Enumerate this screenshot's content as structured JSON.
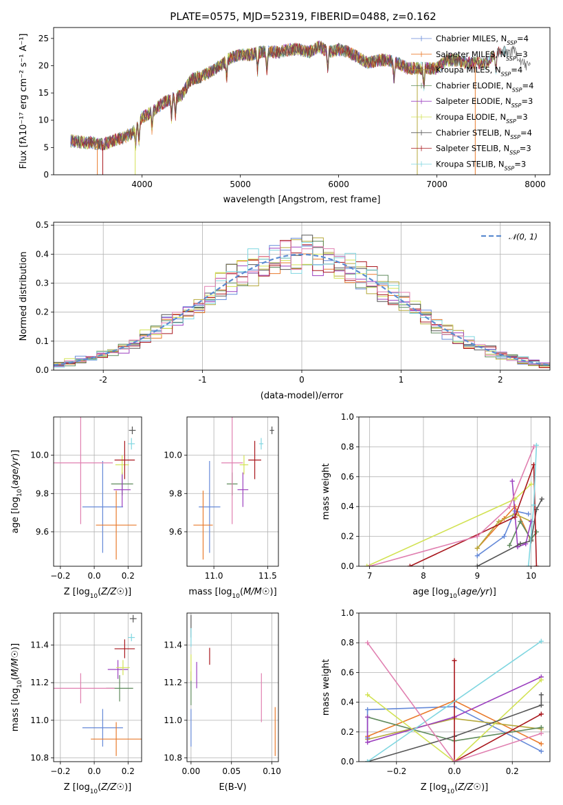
{
  "figure_title": "PLATE=0575, MJD=52319, FIBERID=0488, z=0.162",
  "colors": [
    "#6489d8",
    "#e97a2b",
    "#b5a83a",
    "#5f8a5c",
    "#9b3fbf",
    "#d2e253",
    "#555555",
    "#a8161c",
    "#7fd6e0",
    "#e07fb0"
  ],
  "chart_data": [
    {
      "id": "spectrum",
      "type": "line",
      "title": "PLATE=0575, MJD=52319, FIBERID=0488, z=0.162",
      "xlabel": "wavelength [Angstrom, rest frame]",
      "ylabel": "Flux [fλ10⁻¹⁷ erg cm⁻² s⁻¹ A⁻¹]",
      "xlim": [
        3100,
        8150
      ],
      "ylim": [
        0,
        27
      ],
      "xticks": [
        4000,
        5000,
        6000,
        7000,
        8000
      ],
      "yticks": [
        0,
        5,
        10,
        15,
        20,
        25
      ],
      "grid": false,
      "legend_position": "top-right",
      "envelope": {
        "x": [
          3300,
          3400,
          3500,
          3600,
          3700,
          3800,
          3900,
          4000,
          4100,
          4200,
          4300,
          4400,
          4500,
          4600,
          4700,
          4800,
          4900,
          5000,
          5100,
          5200,
          5300,
          5400,
          5500,
          5600,
          5700,
          5800,
          5900,
          6000,
          6100,
          6200,
          6300,
          6400,
          6500,
          6600,
          6700,
          6800,
          6900,
          7000,
          7100,
          7200,
          7300,
          7400,
          7500,
          7600,
          7700,
          7800,
          7900
        ],
        "y": [
          6.2,
          5.9,
          5.9,
          5.5,
          6.2,
          6.8,
          7.6,
          10.5,
          11.5,
          13.0,
          14.0,
          14.5,
          17.5,
          18.0,
          19.0,
          20.0,
          21.5,
          22.0,
          22.0,
          22.5,
          22.5,
          22.5,
          23.0,
          23.0,
          22.5,
          23.5,
          22.5,
          23.0,
          22.5,
          21.5,
          20.5,
          21.0,
          21.0,
          20.5,
          19.5,
          19.5,
          19.5,
          19.5,
          21.0,
          21.0,
          20.5,
          20.5,
          20.5,
          22.5,
          22.5,
          22.5,
          20.0
        ]
      },
      "series": [
        {
          "name": "Chabrier MILES, N_SSP=4",
          "color": "#6489d8"
        },
        {
          "name": "Salpeter MILES, N_SSP=3",
          "color": "#e97a2b"
        },
        {
          "name": "Kroupa MILES, N_SSP=4",
          "color": "#b5a83a"
        },
        {
          "name": "Chabrier ELODIE, N_SSP=4",
          "color": "#5f8a5c"
        },
        {
          "name": "Salpeter ELODIE, N_SSP=3",
          "color": "#9b3fbf"
        },
        {
          "name": "Kroupa ELODIE, N_SSP=3",
          "color": "#d2e253"
        },
        {
          "name": "Chabrier STELIB, N_SSP=4",
          "color": "#555555"
        },
        {
          "name": "Salpeter STELIB, N_SSP=3",
          "color": "#a8161c"
        },
        {
          "name": "Kroupa STELIB, N_SSP=3",
          "color": "#7fd6e0"
        }
      ]
    },
    {
      "id": "residuals",
      "type": "histogram",
      "xlabel": "(data-model)/error",
      "ylabel": "Normed distribution",
      "xlim": [
        -2.5,
        2.5
      ],
      "ylim": [
        0,
        0.51
      ],
      "xticks": [
        -2,
        -1,
        0,
        1,
        2
      ],
      "yticks": [
        0.0,
        0.1,
        0.2,
        0.3,
        0.4,
        0.5
      ],
      "grid": true,
      "bins_edges": [
        -2.5,
        2.5
      ],
      "n_bins": 46,
      "reference_label": "𝒩(0, 1)",
      "reference_color": "#5b8bd0",
      "legend_position": "top-right"
    },
    {
      "id": "age_vs_Z",
      "type": "errorbar",
      "xlabel": "Z [log10(Z/Z☉)]",
      "ylabel": "age  [log10(age/yr)]",
      "xlim": [
        -0.24,
        0.28
      ],
      "ylim": [
        9.42,
        10.2
      ],
      "xticks": [
        -0.2,
        0.0,
        0.2
      ],
      "yticks": [
        9.6,
        9.8,
        10.0
      ],
      "grid": true,
      "points": [
        {
          "x": 0.05,
          "y": 9.73,
          "xerr": 0.12,
          "yerr": 0.24,
          "color": "#6489d8"
        },
        {
          "x": 0.13,
          "y": 9.635,
          "xerr": 0.12,
          "yerr": 0.18,
          "color": "#e97a2b"
        },
        {
          "x": 0.165,
          "y": 9.85,
          "xerr": 0.065,
          "yerr": 0.06,
          "color": "#5f8a5c"
        },
        {
          "x": 0.165,
          "y": 9.82,
          "xerr": 0.05,
          "yerr": 0.09,
          "color": "#9b3fbf"
        },
        {
          "x": 0.165,
          "y": 9.95,
          "xerr": 0.04,
          "yerr": 0.05,
          "color": "#d2e253"
        },
        {
          "x": 0.225,
          "y": 10.13,
          "xerr": 0.02,
          "yerr": 0.02,
          "color": "#555555"
        },
        {
          "x": 0.18,
          "y": 9.975,
          "xerr": 0.06,
          "yerr": 0.1,
          "color": "#a8161c"
        },
        {
          "x": 0.22,
          "y": 10.06,
          "xerr": 0.02,
          "yerr": 0.03,
          "color": "#7fd6e0"
        },
        {
          "x": -0.08,
          "y": 9.96,
          "xerr": 0.19,
          "yerr": 0.32,
          "color": "#e07fb0"
        }
      ]
    },
    {
      "id": "age_vs_mass",
      "type": "errorbar",
      "xlabel": "mass [log10(M/M☉)]",
      "ylabel": "",
      "xlim": [
        10.75,
        11.6
      ],
      "ylim": [
        9.42,
        10.2
      ],
      "xticks": [
        11.0,
        11.5
      ],
      "yticks": [
        9.6,
        9.8,
        10.0
      ],
      "grid": true,
      "points": [
        {
          "x": 10.96,
          "y": 9.73,
          "xerr": 0.1,
          "yerr": 0.24,
          "color": "#6489d8"
        },
        {
          "x": 10.9,
          "y": 9.635,
          "xerr": 0.09,
          "yerr": 0.18,
          "color": "#e97a2b"
        },
        {
          "x": 11.17,
          "y": 9.85,
          "xerr": 0.05,
          "yerr": 0.06,
          "color": "#5f8a5c"
        },
        {
          "x": 11.27,
          "y": 9.82,
          "xerr": 0.05,
          "yerr": 0.09,
          "color": "#9b3fbf"
        },
        {
          "x": 11.28,
          "y": 9.95,
          "xerr": 0.04,
          "yerr": 0.05,
          "color": "#d2e253"
        },
        {
          "x": 11.54,
          "y": 10.13,
          "xerr": 0.02,
          "yerr": 0.02,
          "color": "#555555"
        },
        {
          "x": 11.38,
          "y": 9.975,
          "xerr": 0.06,
          "yerr": 0.1,
          "color": "#a8161c"
        },
        {
          "x": 11.44,
          "y": 10.06,
          "xerr": 0.02,
          "yerr": 0.03,
          "color": "#7fd6e0"
        },
        {
          "x": 11.17,
          "y": 9.96,
          "xerr": 0.1,
          "yerr": 0.32,
          "color": "#e07fb0"
        }
      ]
    },
    {
      "id": "weight_vs_age",
      "type": "line",
      "xlabel": "age  [log10(age/yr)]",
      "ylabel": "mass weight",
      "xlim": [
        6.8,
        10.35
      ],
      "ylim": [
        0.0,
        1.0
      ],
      "xticks": [
        7,
        8,
        9,
        10
      ],
      "yticks": [
        0.0,
        0.2,
        0.4,
        0.6,
        0.8,
        1.0
      ],
      "grid": true,
      "series": [
        {
          "color": "#6489d8",
          "x": [
            9.0,
            9.5,
            9.7,
            9.95
          ],
          "y": [
            0.07,
            0.2,
            0.37,
            0.35
          ]
        },
        {
          "color": "#e97a2b",
          "x": [
            9.0,
            9.5,
            9.7,
            10.0
          ],
          "y": [
            0.12,
            0.32,
            0.4,
            0.17
          ]
        },
        {
          "color": "#b5a83a",
          "x": [
            9.0,
            9.4,
            9.7,
            10.0
          ],
          "y": [
            0.12,
            0.3,
            0.35,
            0.3
          ]
        },
        {
          "color": "#5f8a5c",
          "x": [
            9.6,
            9.8,
            10.0,
            10.1
          ],
          "y": [
            0.14,
            0.3,
            0.18,
            0.23
          ]
        },
        {
          "color": "#9b3fbf",
          "x": [
            9.65,
            9.75,
            9.9,
            10.0
          ],
          "y": [
            0.57,
            0.13,
            0.15,
            0.3
          ]
        },
        {
          "color": "#d2e253",
          "x": [
            6.95,
            9.7,
            10.0
          ],
          "y": [
            0.0,
            0.45,
            0.55
          ]
        },
        {
          "color": "#555555",
          "x": [
            9.0,
            9.8,
            10.0,
            10.1,
            10.2
          ],
          "y": [
            0.0,
            0.15,
            0.17,
            0.38,
            0.45
          ]
        },
        {
          "color": "#a8161c",
          "x": [
            7.75,
            9.7,
            10.05,
            10.1
          ],
          "y": [
            0.0,
            0.33,
            0.68,
            0.0
          ]
        },
        {
          "color": "#7fd6e0",
          "x": [
            9.95,
            10.05,
            10.1
          ],
          "y": [
            0.0,
            0.41,
            0.81
          ]
        },
        {
          "color": "#e07fb0",
          "x": [
            7.0,
            9.0,
            9.6,
            10.05
          ],
          "y": [
            0.0,
            0.2,
            0.4,
            0.8
          ]
        }
      ]
    },
    {
      "id": "mass_vs_Z",
      "type": "errorbar",
      "xlabel": "Z [log10(Z/Z☉)]",
      "ylabel": "mass [log10(M/M☉)]",
      "xlim": [
        -0.24,
        0.28
      ],
      "ylim": [
        10.78,
        11.57
      ],
      "xticks": [
        -0.2,
        0.0,
        0.2
      ],
      "yticks": [
        10.8,
        11.0,
        11.2,
        11.4
      ],
      "grid": true,
      "points": [
        {
          "x": 0.05,
          "y": 10.96,
          "xerr": 0.12,
          "yerr": 0.1,
          "color": "#6489d8"
        },
        {
          "x": 0.13,
          "y": 10.9,
          "xerr": 0.15,
          "yerr": 0.09,
          "color": "#e97a2b"
        },
        {
          "x": 0.15,
          "y": 11.17,
          "xerr": 0.08,
          "yerr": 0.07,
          "color": "#5f8a5c"
        },
        {
          "x": 0.14,
          "y": 11.27,
          "xerr": 0.06,
          "yerr": 0.05,
          "color": "#9b3fbf"
        },
        {
          "x": 0.17,
          "y": 11.28,
          "xerr": 0.04,
          "yerr": 0.04,
          "color": "#d2e253"
        },
        {
          "x": 0.23,
          "y": 11.54,
          "xerr": 0.02,
          "yerr": 0.02,
          "color": "#555555"
        },
        {
          "x": 0.18,
          "y": 11.38,
          "xerr": 0.06,
          "yerr": 0.05,
          "color": "#a8161c"
        },
        {
          "x": 0.22,
          "y": 11.44,
          "xerr": 0.02,
          "yerr": 0.02,
          "color": "#7fd6e0"
        },
        {
          "x": -0.08,
          "y": 11.17,
          "xerr": 0.2,
          "yerr": 0.08,
          "color": "#e07fb0"
        }
      ]
    },
    {
      "id": "mass_vs_EBV",
      "type": "errorbar",
      "xlabel": "E(B-V)",
      "ylabel": "",
      "xlim": [
        -0.005,
        0.108
      ],
      "ylim": [
        10.78,
        11.57
      ],
      "xticks": [
        0.0,
        0.05,
        0.1
      ],
      "yticks": [
        10.8,
        11.0,
        11.2,
        11.4
      ],
      "grid": true,
      "points": [
        {
          "x": 0.0,
          "y": 10.96,
          "xerr": 0.0,
          "yerr": 0.1,
          "color": "#6489d8"
        },
        {
          "x": 0.104,
          "y": 10.94,
          "xerr": 0.0,
          "yerr": 0.13,
          "color": "#e97a2b"
        },
        {
          "x": 0.0,
          "y": 11.17,
          "xerr": 0.0,
          "yerr": 0.09,
          "color": "#5f8a5c"
        },
        {
          "x": 0.007,
          "y": 11.24,
          "xerr": 0.0,
          "yerr": 0.07,
          "color": "#9b3fbf"
        },
        {
          "x": 0.0,
          "y": 11.28,
          "xerr": 0.0,
          "yerr": 0.07,
          "color": "#d2e253"
        },
        {
          "x": 0.0,
          "y": 11.5,
          "xerr": 0.0,
          "yerr": 0.06,
          "color": "#555555"
        },
        {
          "x": 0.023,
          "y": 11.34,
          "xerr": 0.0,
          "yerr": 0.045,
          "color": "#a8161c"
        },
        {
          "x": 0.0,
          "y": 11.44,
          "xerr": 0.0,
          "yerr": 0.05,
          "color": "#7fd6e0"
        },
        {
          "x": 0.087,
          "y": 11.12,
          "xerr": 0.0,
          "yerr": 0.13,
          "color": "#e07fb0"
        }
      ]
    },
    {
      "id": "weight_vs_Z",
      "type": "line",
      "xlabel": "Z [log10(Z/Z☉)]",
      "ylabel": "mass weight",
      "xlim": [
        -0.33,
        0.33
      ],
      "ylim": [
        0.0,
        1.0
      ],
      "xticks": [
        -0.2,
        0.0,
        0.2
      ],
      "yticks": [
        0.0,
        0.2,
        0.4,
        0.6,
        0.8,
        1.0
      ],
      "grid": true,
      "series": [
        {
          "color": "#6489d8",
          "x": [
            -0.3,
            -0.3,
            0.0,
            0.3
          ],
          "y": [
            0.16,
            0.35,
            0.37,
            0.07
          ]
        },
        {
          "color": "#e97a2b",
          "x": [
            -0.3,
            0.0,
            0.3
          ],
          "y": [
            0.17,
            0.41,
            0.12
          ]
        },
        {
          "color": "#b5a83a",
          "x": [
            -0.3,
            0.0,
            0.3
          ],
          "y": [
            0.15,
            0.29,
            0.22
          ]
        },
        {
          "color": "#5f8a5c",
          "x": [
            -0.3,
            0.0,
            0.3
          ],
          "y": [
            0.3,
            0.14,
            0.23
          ]
        },
        {
          "color": "#9b3fbf",
          "x": [
            -0.3,
            -0.3,
            0.0,
            0.3
          ],
          "y": [
            0.3,
            0.13,
            0.3,
            0.57
          ]
        },
        {
          "color": "#d2e253",
          "x": [
            -0.3,
            0.0,
            0.3
          ],
          "y": [
            0.45,
            0.0,
            0.55
          ]
        },
        {
          "color": "#555555",
          "x": [
            -0.3,
            0.0,
            0.3,
            0.3
          ],
          "y": [
            0.0,
            0.17,
            0.38,
            0.45
          ]
        },
        {
          "color": "#a8161c",
          "x": [
            0.0,
            0.0,
            0.0,
            0.3
          ],
          "y": [
            0.68,
            0.0,
            0.0,
            0.32
          ]
        },
        {
          "color": "#7fd6e0",
          "x": [
            -0.3,
            0.3
          ],
          "y": [
            0.0,
            0.81
          ]
        },
        {
          "color": "#e07fb0",
          "x": [
            -0.3,
            0.0,
            0.3
          ],
          "y": [
            0.8,
            0.0,
            0.19
          ]
        }
      ]
    }
  ]
}
